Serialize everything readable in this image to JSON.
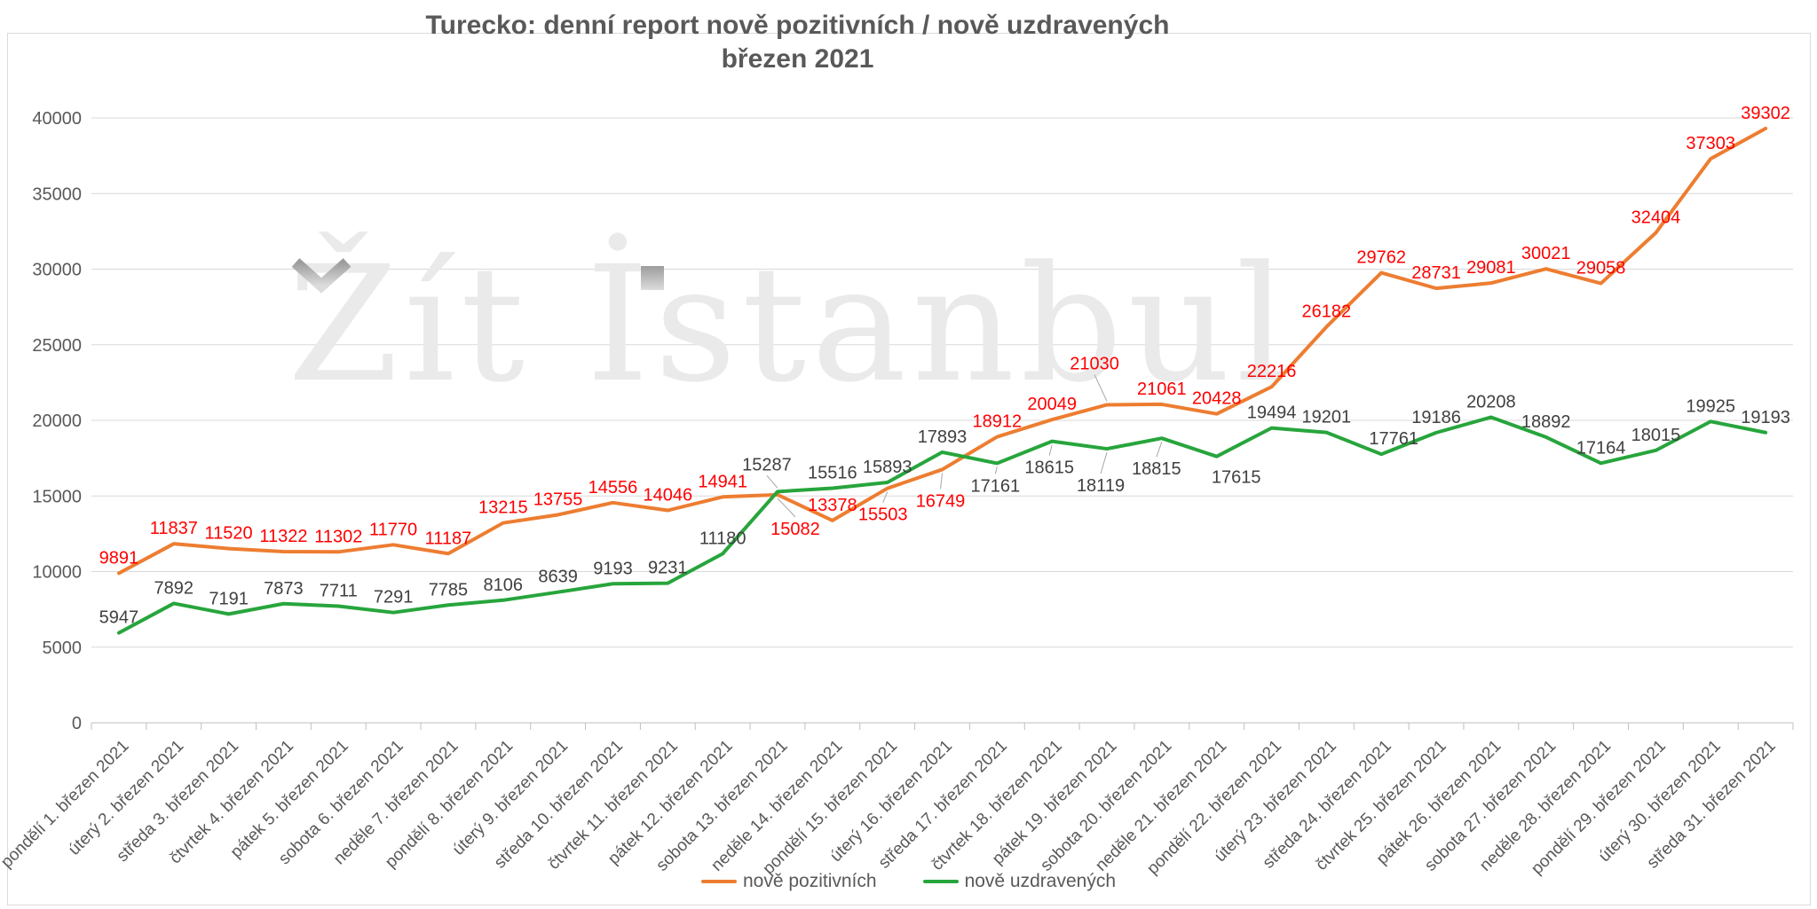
{
  "title": {
    "line1": "Turecko: denní report nově pozitivních / nově uzdravených",
    "line2": "březen 2021"
  },
  "watermark": "Žít İstanbul",
  "chart_data": {
    "type": "line",
    "title": "Turecko: denní report nově pozitivních / nově uzdravených — březen 2021",
    "xlabel": "",
    "ylabel": "",
    "ylim": [
      0,
      40000
    ],
    "yticks": [
      0,
      5000,
      10000,
      15000,
      20000,
      25000,
      30000,
      35000,
      40000
    ],
    "grid": true,
    "legend_position": "bottom",
    "categories": [
      "pondělí 1. březen 2021",
      "úterý 2. březen 2021",
      "středa 3. březen 2021",
      "čtvrtek 4. březen 2021",
      "pátek 5. březen 2021",
      "sobota 6. březen 2021",
      "neděle 7. březen 2021",
      "pondělí 8. březen 2021",
      "úterý 9. březen 2021",
      "středa 10. březen 2021",
      "čtvrtek 11. březen 2021",
      "pátek 12. březen 2021",
      "sobota 13. březen 2021",
      "neděle 14. březen 2021",
      "pondělí 15. březen 2021",
      "úterý 16. březen 2021",
      "středa 17. březen 2021",
      "čtvrtek 18. březen 2021",
      "pátek 19. březen 2021",
      "sobota 20. březen 2021",
      "neděle 21. březen 2021",
      "pondělí 22. březen 2021",
      "úterý 23. březen 2021",
      "středa 24. březen 2021",
      "čtvrtek 25. březen 2021",
      "pátek 26. březen 2021",
      "sobota 27. březen 2021",
      "neděle 28. březen 2021",
      "pondělí 29. březen 2021",
      "úterý 30. březen 2021",
      "středa 31. březen 2021"
    ],
    "series": [
      {
        "name": "nově pozitivních",
        "color": "#ED7D31",
        "label_color": "#FF0000",
        "values": [
          9891,
          11837,
          11520,
          11322,
          11302,
          11770,
          11187,
          13215,
          13755,
          14556,
          14046,
          14941,
          15082,
          13378,
          15503,
          16749,
          18912,
          20049,
          21030,
          21061,
          20428,
          22216,
          26182,
          29762,
          28731,
          29081,
          30021,
          29058,
          32404,
          37303,
          39302
        ]
      },
      {
        "name": "nově uzdravených",
        "color": "#27A53C",
        "label_color": "#404040",
        "values": [
          5947,
          7892,
          7191,
          7873,
          7711,
          7291,
          7785,
          8106,
          8639,
          9193,
          9231,
          11180,
          15287,
          15516,
          15893,
          17893,
          17161,
          18615,
          18119,
          18815,
          17615,
          19494,
          19201,
          17761,
          19186,
          20208,
          18892,
          17164,
          18015,
          19925,
          19193
        ]
      }
    ],
    "label_layout": {
      "0": {
        "12": {
          "dx": 20,
          "dy": 45,
          "leader": true
        },
        "14": {
          "dx": -5,
          "dy": 36,
          "leader": true
        },
        "15": {
          "dx": -2,
          "dy": 42,
          "leader": true
        },
        "18": {
          "dx": -14,
          "dy": -40,
          "leader": true
        }
      },
      "1": {
        "12": {
          "dx": -12,
          "dy": -24,
          "leader": true
        },
        "16": {
          "dx": -2,
          "dy": 32,
          "leader": true
        },
        "17": {
          "dx": -3,
          "dy": 36,
          "leader": true
        },
        "18": {
          "dx": -7,
          "dy": 48,
          "leader": true
        },
        "19": {
          "dx": -6,
          "dy": 41,
          "leader": true
        },
        "20": {
          "dx": 22,
          "dy": 30
        },
        "23": {
          "dx": 14,
          "dy": -11
        }
      }
    },
    "colors": {
      "grid": "#D9D9D9",
      "axis": "#BFBFBF",
      "axis_text": "#595959",
      "leader": "#A6A6A6",
      "frame": "#DBDBDB",
      "watermark": "#EAEAEA",
      "watermark_accent_dark": "#9C9C9C",
      "watermark_accent_light": "#DCDCDC"
    }
  }
}
